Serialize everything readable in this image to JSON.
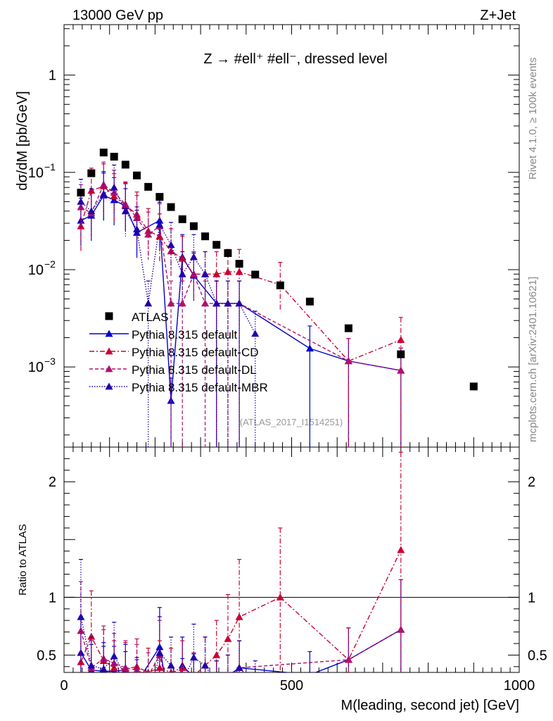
{
  "header": {
    "left": "13000 GeV pp",
    "right": "Z+Jet",
    "title": "Z → #ell⁺ #ell⁻, dressed level",
    "rivet": "Rivet 4.1.0, ≥ 100k events",
    "mcplots": "mcplots.cern.ch [arXiv:2401.10621]",
    "analysis": "(ATLAS_2017_I1514251)"
  },
  "chart_data": {
    "type": "scatter",
    "title": "Z → #ell⁺ #ell⁻, dressed level",
    "xlabel": "M(leading, second jet) [GeV]",
    "ylabel": "dσ/dM [pb/GeV]",
    "ratio_ylabel": "Ratio to ATLAS",
    "xlim": [
      0,
      1000
    ],
    "ylim": [
      0.00015,
      3.3
    ],
    "ratio_ylim": [
      0.35,
      2.3
    ],
    "x_ticks": [
      0,
      500,
      1000
    ],
    "x_tick_labels": [
      "0",
      "500",
      "1000"
    ],
    "y_ticks": [
      1,
      0.1,
      0.01,
      0.001
    ],
    "y_tick_labels": [
      {
        "base": "1",
        "exp": ""
      },
      {
        "base": "10",
        "exp": "−1"
      },
      {
        "base": "10",
        "exp": "−2"
      },
      {
        "base": "10",
        "exp": "−3"
      }
    ],
    "ratio_ticks": [
      0.5,
      1,
      2
    ],
    "ratio_tick_labels": [
      "0.5",
      "1",
      "2"
    ],
    "data": {
      "name": "ATLAS",
      "color": "#000000",
      "x": [
        37,
        60,
        87,
        110,
        135,
        160,
        185,
        210,
        235,
        260,
        285,
        310,
        335,
        360,
        385,
        420,
        475,
        540,
        625,
        740,
        900
      ],
      "y": [
        0.062,
        0.098,
        0.16,
        0.145,
        0.12,
        0.093,
        0.071,
        0.056,
        0.044,
        0.033,
        0.028,
        0.022,
        0.018,
        0.0148,
        0.0115,
        0.0089,
        0.0069,
        0.0047,
        0.0025,
        0.00135,
        0.00063
      ]
    },
    "series": [
      {
        "name": "Pythia 8.315 default",
        "color": "#0000cc",
        "dash": "",
        "x": [
          37,
          60,
          87,
          110,
          135,
          160,
          210,
          235,
          260,
          285,
          335,
          385,
          540,
          625,
          740
        ],
        "y": [
          0.032,
          0.036,
          0.058,
          0.052,
          0.045,
          0.024,
          0.032,
          0.00045,
          0.0135,
          0.0087,
          0.0045,
          0.0045,
          0.00155,
          0.00115,
          0.00092
        ],
        "ratio": [
          0.52,
          0.37,
          0.36,
          0.36,
          0.37,
          0.26,
          0.57,
          0.01,
          0.41,
          0.31,
          0.25,
          0.39,
          0.33,
          0.46,
          0.72
        ]
      },
      {
        "name": "Pythia 8.315 default-CD",
        "color": "#cc0033",
        "dash": "7,3,2,3",
        "x": [
          37,
          60,
          87,
          110,
          135,
          160,
          185,
          210,
          235,
          260,
          285,
          310,
          335,
          360,
          385,
          475,
          625,
          740
        ],
        "y": [
          0.028,
          0.065,
          0.072,
          0.057,
          0.046,
          0.037,
          0.025,
          0.022,
          0.0155,
          0.013,
          0.009,
          0.009,
          0.009,
          0.0095,
          0.0095,
          0.007,
          0.00115,
          0.0019
        ],
        "ratio": [
          0.44,
          0.66,
          0.45,
          0.39,
          0.38,
          0.4,
          0.35,
          0.39,
          0.35,
          0.39,
          0.32,
          0.41,
          0.5,
          0.64,
          0.83,
          1.0,
          0.46,
          1.41
        ]
      },
      {
        "name": "Pythia 8.315 default-DL",
        "color": "#b0106e",
        "dash": "5,3",
        "x": [
          37,
          60,
          87,
          110,
          135,
          160,
          185,
          210,
          235,
          260,
          285,
          310,
          335,
          360,
          385,
          625,
          740
        ],
        "y": [
          0.044,
          0.038,
          0.075,
          0.062,
          0.047,
          0.034,
          0.023,
          0.028,
          0.0045,
          0.0045,
          0.009,
          0.0045,
          0.0045,
          0.0045,
          0.0045,
          0.00115,
          0.00092
        ],
        "ratio": [
          0.71,
          0.39,
          0.47,
          0.43,
          0.39,
          0.37,
          0.32,
          0.5,
          0.1,
          0.14,
          0.32,
          0.2,
          0.25,
          0.3,
          0.39,
          0.46,
          0.72
        ]
      },
      {
        "name": "Pythia 8.315 default-MBR",
        "color": "#2200aa",
        "dash": "1.5,2",
        "x": [
          37,
          60,
          87,
          110,
          135,
          160,
          185,
          210,
          235,
          260,
          285,
          310,
          335,
          360,
          385,
          420
        ],
        "y": [
          0.05,
          0.04,
          0.06,
          0.07,
          0.04,
          0.026,
          0.0045,
          0.029,
          0.018,
          0.009,
          0.0135,
          0.009,
          0.0045,
          0.0045,
          0.0045,
          0.0022
        ],
        "ratio": [
          0.83,
          0.41,
          0.38,
          0.49,
          0.33,
          0.28,
          0.06,
          0.52,
          0.41,
          0.27,
          0.48,
          0.41,
          0.25,
          0.3,
          0.39,
          0.25
        ]
      }
    ]
  }
}
